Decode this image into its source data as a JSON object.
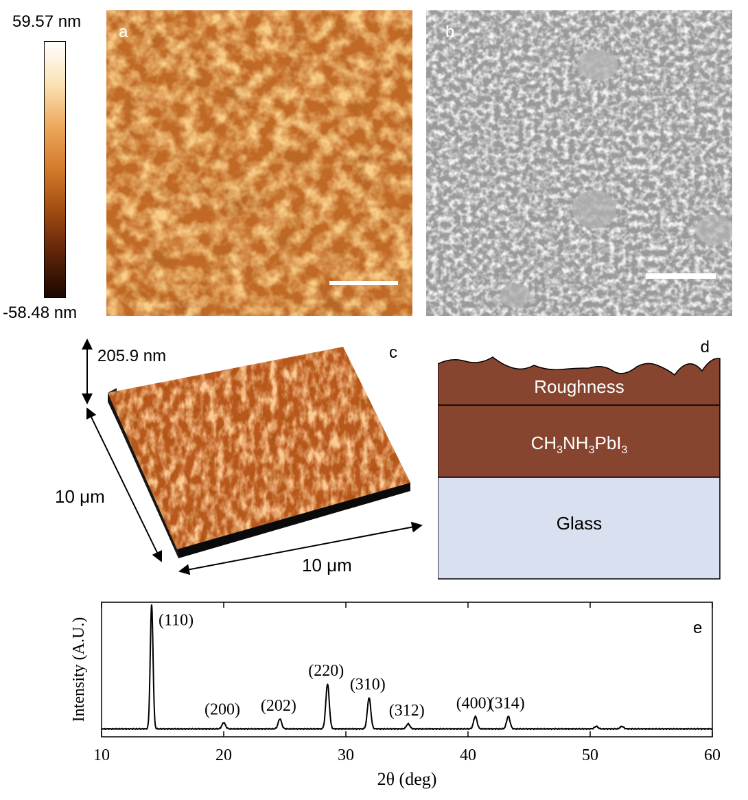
{
  "colorbar": {
    "max_label": "59.57 nm",
    "min_label": "-58.48 nm",
    "max_value": 59.57,
    "min_value": -58.48,
    "colors": [
      "#1a0700",
      "#5c2208",
      "#a04a12",
      "#d17a2a",
      "#eda75b",
      "#fae2b4",
      "#ffffff"
    ]
  },
  "panels": {
    "a": {
      "letter": "a"
    },
    "b": {
      "letter": "b"
    },
    "c": {
      "letter": "c",
      "height_label": "205.9 nm",
      "side_label_left": "10 μm",
      "side_label_bottom": "10 μm"
    },
    "d": {
      "letter": "d",
      "layers": {
        "roughness": "Roughness",
        "film_prefix": "CH",
        "film_sub1": "3",
        "film_mid": "NH",
        "film_sub2": "3",
        "film_mid2": "PbI",
        "film_sub3": "3",
        "substrate": "Glass"
      },
      "colors": {
        "film": "#874530",
        "substrate": "#d9e1f1"
      }
    },
    "e": {
      "letter": "e"
    }
  },
  "chart_data": {
    "type": "line",
    "xlabel": "2θ (deg)",
    "ylabel": "Intensity (A.U.)",
    "xlim": [
      10,
      60
    ],
    "x_ticks": [
      10,
      20,
      30,
      40,
      50,
      60
    ],
    "baseline": 2,
    "peaks": [
      {
        "label": "(110)",
        "x": 14.1,
        "height": 100
      },
      {
        "label": "(200)",
        "x": 20.0,
        "height": 5
      },
      {
        "label": "(202)",
        "x": 24.6,
        "height": 8
      },
      {
        "label": "(220)",
        "x": 28.5,
        "height": 36
      },
      {
        "label": "(310)",
        "x": 31.9,
        "height": 25
      },
      {
        "label": "(312)",
        "x": 35.1,
        "height": 4
      },
      {
        "label": "(400)",
        "x": 40.6,
        "height": 10
      },
      {
        "label": "(314)",
        "x": 43.3,
        "height": 10
      },
      {
        "label": "",
        "x": 50.5,
        "height": 2
      },
      {
        "label": "",
        "x": 52.6,
        "height": 2
      }
    ]
  }
}
